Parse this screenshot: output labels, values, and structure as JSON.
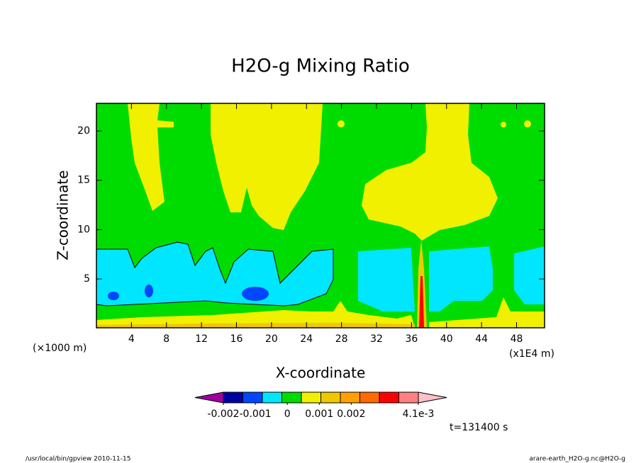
{
  "chart_data": {
    "type": "contour",
    "title": "H2O-g Mixing Ratio",
    "xlabel": "X-coordinate",
    "ylabel": "Z-coordinate",
    "x_unit_left": "(×1000 m)",
    "x_unit_right": "(x1E4 m)",
    "xlim": [
      0,
      51.2
    ],
    "ylim": [
      0.05,
      22.8
    ],
    "xticks": [
      4,
      8,
      12,
      16,
      20,
      24,
      28,
      32,
      36,
      40,
      44,
      48
    ],
    "yticks": [
      5,
      10,
      15,
      20
    ],
    "colors": [
      "#a000a0",
      "#0000a0",
      "#0046ff",
      "#00e6ff",
      "#00dc00",
      "#f0f000",
      "#f0c800",
      "#ffa000",
      "#ff6a00",
      "#ff0000",
      "#ff8080",
      "#ffc0c8"
    ],
    "colorbar_lim": [
      -0.002,
      0.0041
    ],
    "colorbar_ticks": [
      {
        "value": -0.002,
        "label": "-0.002"
      },
      {
        "value": -0.001,
        "label": "-0.001"
      },
      0,
      {
        "value": 0.001,
        "label": "0.001"
      },
      {
        "value": 0.002,
        "label": "0.002"
      },
      {
        "value": 0.0041,
        "label": "4.1e-3"
      }
    ],
    "time_label": "t=131400 s",
    "footer_left": "/usr/local/bin/gpview  2010-11-15",
    "footer_right": "arare-earth_H2O-g.nc@H2O-g"
  }
}
